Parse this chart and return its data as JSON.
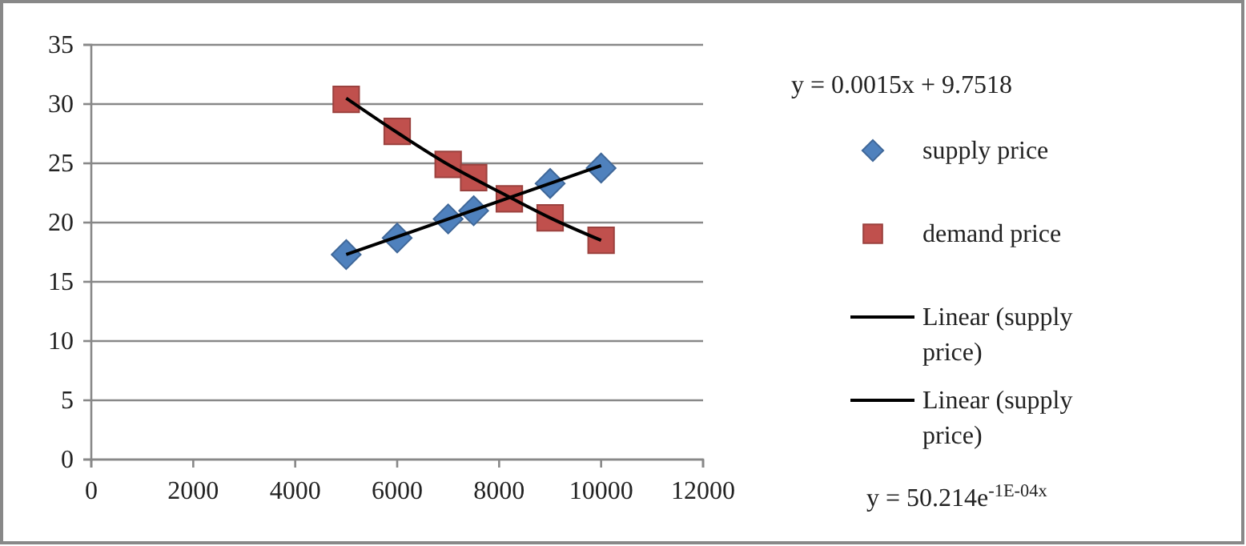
{
  "chart_data": {
    "type": "scatter",
    "xlim": [
      0,
      12000
    ],
    "xticks": [
      0,
      2000,
      4000,
      6000,
      8000,
      10000,
      12000
    ],
    "ylim": [
      0,
      35
    ],
    "yticks": [
      0,
      5,
      10,
      15,
      20,
      25,
      30,
      35
    ],
    "grid": "y",
    "legend": "right",
    "annotations": [
      "y = 0.0015x + 9.7518",
      "y = 50.214e$^{-1E-04x}$"
    ],
    "series": [
      {
        "name": "supply price",
        "marker": "diamond",
        "color": "#4f81bd",
        "x": [
          5000,
          6000,
          7000,
          7500,
          9000,
          10000
        ],
        "values": [
          17.3,
          18.7,
          20.3,
          21.0,
          23.3,
          24.6
        ]
      },
      {
        "name": "demand price",
        "marker": "square",
        "color": "#c0504d",
        "x": [
          5000,
          6000,
          7000,
          7500,
          8200,
          9000,
          10000
        ],
        "values": [
          30.4,
          27.7,
          24.9,
          23.8,
          22.0,
          20.4,
          18.5
        ]
      },
      {
        "name": "Linear (supply price)",
        "type": "line",
        "marker": "none",
        "color": "#000000",
        "x": [
          5000,
          10000
        ],
        "values": [
          17.3,
          24.8
        ]
      },
      {
        "name": "Linear (supply price)",
        "type": "line",
        "marker": "none",
        "color": "#000000",
        "x": [
          5000,
          6000,
          7000,
          8000,
          9000,
          10000
        ],
        "values": [
          30.5,
          27.6,
          24.9,
          22.6,
          20.4,
          18.5
        ]
      }
    ]
  }
}
